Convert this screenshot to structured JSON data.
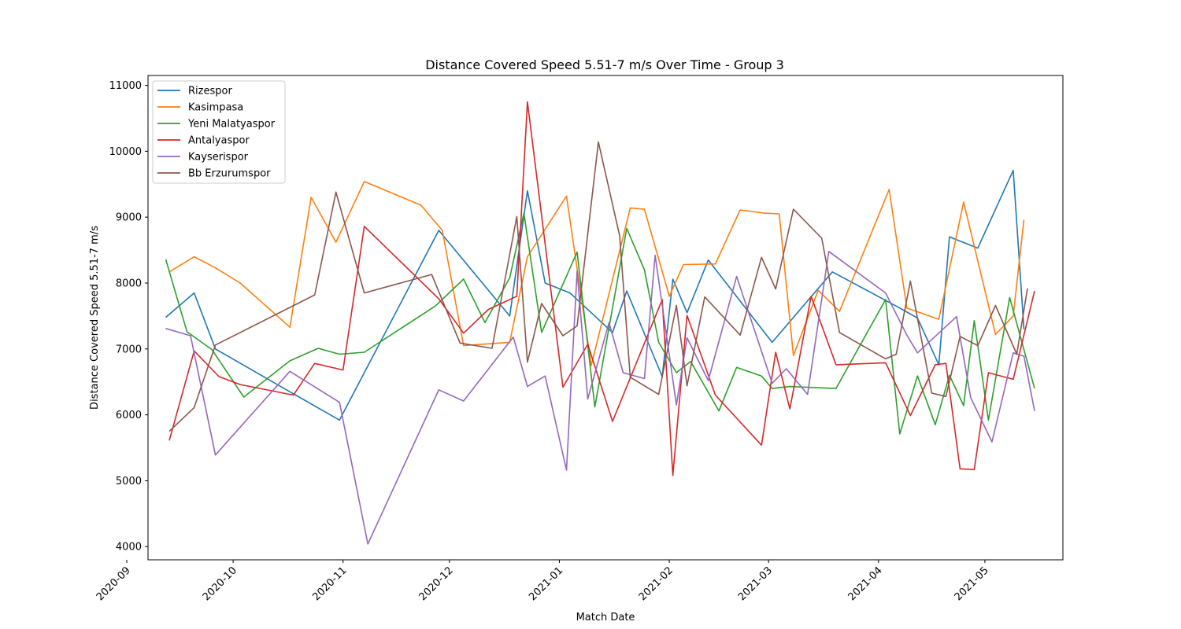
{
  "chart_data": {
    "type": "line",
    "title": "Distance Covered Speed 5.51-7 m/s Over Time - Group 3",
    "xlabel": "Match Date",
    "ylabel": "Distance Covered Speed 5.51-7 m/s",
    "xlim": [
      "2020-09-07",
      "2021-05-23"
    ],
    "ylim": [
      3800,
      11150
    ],
    "x_ticks": [
      "2020-09-01",
      "2020-10-01",
      "2020-11-01",
      "2020-12-01",
      "2021-01-01",
      "2021-02-01",
      "2021-03-01",
      "2021-04-01",
      "2021-05-01"
    ],
    "x_tick_labels": [
      "2020-09",
      "2020-10",
      "2020-11",
      "2020-12",
      "2021-01",
      "2021-02",
      "2021-03",
      "2021-04",
      "2021-05"
    ],
    "y_ticks": [
      4000,
      5000,
      6000,
      7000,
      8000,
      9000,
      10000,
      11000
    ],
    "y_tick_labels": [
      "4000",
      "5000",
      "6000",
      "7000",
      "8000",
      "9000",
      "10000",
      "11000"
    ],
    "grid": false,
    "legend_position": "upper-left",
    "series": [
      {
        "name": "Rizespor",
        "color": "#1f77b4",
        "points": [
          [
            "2020-09-12",
            7480
          ],
          [
            "2020-09-20",
            7850
          ],
          [
            "2020-09-26",
            7000
          ],
          [
            "2020-10-17",
            6350
          ],
          [
            "2020-10-31",
            5920
          ],
          [
            "2020-11-28",
            8800
          ],
          [
            "2020-12-18",
            7500
          ],
          [
            "2020-12-23",
            9400
          ],
          [
            "2020-12-28",
            8000
          ],
          [
            "2021-01-04",
            7850
          ],
          [
            "2021-01-16",
            7250
          ],
          [
            "2021-01-20",
            7880
          ],
          [
            "2021-01-30",
            6580
          ],
          [
            "2021-02-02",
            8060
          ],
          [
            "2021-02-06",
            7550
          ],
          [
            "2021-02-12",
            8350
          ],
          [
            "2021-03-02",
            7100
          ],
          [
            "2021-03-19",
            8170
          ],
          [
            "2021-04-06",
            7650
          ],
          [
            "2021-04-12",
            7470
          ],
          [
            "2021-04-18",
            6760
          ],
          [
            "2021-04-21",
            8700
          ],
          [
            "2021-04-29",
            8530
          ],
          [
            "2021-05-09",
            9710
          ],
          [
            "2021-05-12",
            7300
          ]
        ]
      },
      {
        "name": "Kasimpasa",
        "color": "#ff7f0e",
        "points": [
          [
            "2020-09-13",
            8170
          ],
          [
            "2020-09-20",
            8400
          ],
          [
            "2020-09-26",
            8230
          ],
          [
            "2020-10-03",
            8000
          ],
          [
            "2020-10-17",
            7330
          ],
          [
            "2020-10-23",
            9300
          ],
          [
            "2020-10-30",
            8620
          ],
          [
            "2020-11-07",
            9540
          ],
          [
            "2020-11-23",
            9180
          ],
          [
            "2020-11-29",
            8800
          ],
          [
            "2020-12-05",
            7050
          ],
          [
            "2020-12-18",
            7100
          ],
          [
            "2020-12-23",
            8400
          ],
          [
            "2021-01-03",
            9320
          ],
          [
            "2021-01-10",
            6750
          ],
          [
            "2021-01-21",
            9140
          ],
          [
            "2021-01-25",
            9120
          ],
          [
            "2021-02-01",
            7800
          ],
          [
            "2021-02-05",
            8280
          ],
          [
            "2021-02-14",
            8290
          ],
          [
            "2021-02-21",
            9110
          ],
          [
            "2021-02-28",
            9060
          ],
          [
            "2021-03-04",
            9050
          ],
          [
            "2021-03-08",
            6900
          ],
          [
            "2021-03-15",
            7890
          ],
          [
            "2021-03-21",
            7570
          ],
          [
            "2021-04-04",
            9420
          ],
          [
            "2021-04-09",
            7620
          ],
          [
            "2021-04-18",
            7450
          ],
          [
            "2021-04-25",
            9230
          ],
          [
            "2021-05-04",
            7220
          ],
          [
            "2021-05-09",
            7500
          ],
          [
            "2021-05-12",
            8960
          ]
        ]
      },
      {
        "name": "Yeni Malatyaspor",
        "color": "#2ca02c",
        "points": [
          [
            "2020-09-12",
            8360
          ],
          [
            "2020-09-18",
            7260
          ],
          [
            "2020-09-25",
            6990
          ],
          [
            "2020-10-04",
            6270
          ],
          [
            "2020-10-17",
            6820
          ],
          [
            "2020-10-25",
            7010
          ],
          [
            "2020-10-31",
            6920
          ],
          [
            "2020-11-07",
            6950
          ],
          [
            "2020-11-27",
            7650
          ],
          [
            "2020-12-05",
            8060
          ],
          [
            "2020-12-11",
            7400
          ],
          [
            "2020-12-18",
            8080
          ],
          [
            "2020-12-22",
            9060
          ],
          [
            "2020-12-27",
            7250
          ],
          [
            "2021-01-06",
            8470
          ],
          [
            "2021-01-11",
            6120
          ],
          [
            "2021-01-20",
            8830
          ],
          [
            "2021-01-25",
            8200
          ],
          [
            "2021-01-29",
            7100
          ],
          [
            "2021-02-03",
            6640
          ],
          [
            "2021-02-07",
            6810
          ],
          [
            "2021-02-15",
            6060
          ],
          [
            "2021-02-20",
            6720
          ],
          [
            "2021-02-27",
            6590
          ],
          [
            "2021-03-02",
            6400
          ],
          [
            "2021-03-07",
            6430
          ],
          [
            "2021-03-20",
            6400
          ],
          [
            "2021-04-03",
            7750
          ],
          [
            "2021-04-07",
            5710
          ],
          [
            "2021-04-12",
            6590
          ],
          [
            "2021-04-17",
            5850
          ],
          [
            "2021-04-21",
            6600
          ],
          [
            "2021-04-25",
            6140
          ],
          [
            "2021-04-28",
            7430
          ],
          [
            "2021-05-02",
            5920
          ],
          [
            "2021-05-08",
            7780
          ],
          [
            "2021-05-15",
            6400
          ]
        ]
      },
      {
        "name": "Antalyaspor",
        "color": "#d62728",
        "points": [
          [
            "2020-09-13",
            5610
          ],
          [
            "2020-09-20",
            6970
          ],
          [
            "2020-09-27",
            6580
          ],
          [
            "2020-10-03",
            6460
          ],
          [
            "2020-10-18",
            6300
          ],
          [
            "2020-10-24",
            6780
          ],
          [
            "2020-11-01",
            6680
          ],
          [
            "2020-11-07",
            8860
          ],
          [
            "2020-11-28",
            7760
          ],
          [
            "2020-12-05",
            7240
          ],
          [
            "2020-12-12",
            7600
          ],
          [
            "2020-12-20",
            7800
          ],
          [
            "2020-12-23",
            10750
          ],
          [
            "2021-01-02",
            6420
          ],
          [
            "2021-01-09",
            7070
          ],
          [
            "2021-01-16",
            5900
          ],
          [
            "2021-01-30",
            7750
          ],
          [
            "2021-02-02",
            5080
          ],
          [
            "2021-02-06",
            7510
          ],
          [
            "2021-02-14",
            6300
          ],
          [
            "2021-02-27",
            5540
          ],
          [
            "2021-03-03",
            6950
          ],
          [
            "2021-03-07",
            6090
          ],
          [
            "2021-03-13",
            7800
          ],
          [
            "2021-03-20",
            6760
          ],
          [
            "2021-04-03",
            6790
          ],
          [
            "2021-04-10",
            5990
          ],
          [
            "2021-04-17",
            6760
          ],
          [
            "2021-04-20",
            6780
          ],
          [
            "2021-04-24",
            5180
          ],
          [
            "2021-04-28",
            5170
          ],
          [
            "2021-05-02",
            6640
          ],
          [
            "2021-05-09",
            6540
          ],
          [
            "2021-05-15",
            7880
          ]
        ]
      },
      {
        "name": "Kayserispor",
        "color": "#9467bd",
        "points": [
          [
            "2020-09-12",
            7310
          ],
          [
            "2020-09-19",
            7200
          ],
          [
            "2020-09-26",
            5390
          ],
          [
            "2020-10-17",
            6660
          ],
          [
            "2020-10-31",
            6190
          ],
          [
            "2020-11-08",
            4040
          ],
          [
            "2020-11-28",
            6380
          ],
          [
            "2020-12-05",
            6210
          ],
          [
            "2020-12-19",
            7180
          ],
          [
            "2020-12-23",
            6430
          ],
          [
            "2020-12-28",
            6590
          ],
          [
            "2021-01-03",
            5160
          ],
          [
            "2021-01-06",
            8180
          ],
          [
            "2021-01-09",
            6240
          ],
          [
            "2021-01-15",
            7400
          ],
          [
            "2021-01-19",
            6640
          ],
          [
            "2021-01-25",
            6550
          ],
          [
            "2021-01-28",
            8420
          ],
          [
            "2021-02-03",
            6150
          ],
          [
            "2021-02-06",
            7170
          ],
          [
            "2021-02-12",
            6520
          ],
          [
            "2021-02-20",
            8100
          ],
          [
            "2021-03-02",
            6480
          ],
          [
            "2021-03-06",
            6700
          ],
          [
            "2021-03-12",
            6310
          ],
          [
            "2021-03-18",
            8480
          ],
          [
            "2021-04-03",
            7850
          ],
          [
            "2021-04-09",
            7210
          ],
          [
            "2021-04-12",
            6940
          ],
          [
            "2021-04-23",
            7490
          ],
          [
            "2021-04-27",
            6260
          ],
          [
            "2021-05-03",
            5590
          ],
          [
            "2021-05-09",
            6940
          ],
          [
            "2021-05-12",
            6890
          ],
          [
            "2021-05-15",
            6060
          ]
        ]
      },
      {
        "name": "Bb Erzurumspor",
        "color": "#8c564b",
        "points": [
          [
            "2020-09-13",
            5750
          ],
          [
            "2020-09-20",
            6110
          ],
          [
            "2020-09-26",
            7060
          ],
          [
            "2020-10-24",
            7820
          ],
          [
            "2020-10-30",
            9380
          ],
          [
            "2020-11-07",
            7850
          ],
          [
            "2020-11-26",
            8130
          ],
          [
            "2020-12-04",
            7090
          ],
          [
            "2020-12-13",
            7010
          ],
          [
            "2020-12-20",
            9010
          ],
          [
            "2020-12-23",
            6800
          ],
          [
            "2020-12-27",
            7690
          ],
          [
            "2021-01-02",
            7200
          ],
          [
            "2021-01-06",
            7350
          ],
          [
            "2021-01-12",
            10140
          ],
          [
            "2021-01-18",
            8720
          ],
          [
            "2021-01-21",
            6570
          ],
          [
            "2021-01-29",
            6310
          ],
          [
            "2021-02-03",
            7660
          ],
          [
            "2021-02-06",
            6440
          ],
          [
            "2021-02-11",
            7790
          ],
          [
            "2021-02-21",
            7210
          ],
          [
            "2021-02-27",
            8390
          ],
          [
            "2021-03-03",
            7910
          ],
          [
            "2021-03-08",
            9120
          ],
          [
            "2021-03-16",
            8680
          ],
          [
            "2021-03-21",
            7250
          ],
          [
            "2021-04-03",
            6850
          ],
          [
            "2021-04-06",
            6920
          ],
          [
            "2021-04-10",
            8030
          ],
          [
            "2021-04-16",
            6330
          ],
          [
            "2021-04-20",
            6280
          ],
          [
            "2021-04-24",
            7190
          ],
          [
            "2021-04-29",
            7050
          ],
          [
            "2021-05-04",
            7660
          ],
          [
            "2021-05-10",
            6920
          ],
          [
            "2021-05-13",
            7920
          ]
        ]
      }
    ]
  }
}
